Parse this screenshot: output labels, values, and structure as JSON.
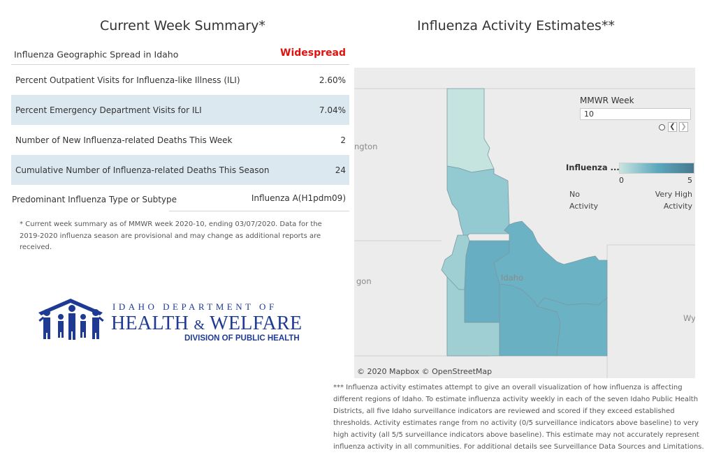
{
  "left_title": "Current Week Summary*",
  "right_title": "Influenza Activity Estimates**",
  "summary": {
    "spread_label": "Influenza Geographic Spread in Idaho",
    "spread_value": "Widespread",
    "spread_color": "#e0120f",
    "ili_label": "Percent Outpatient Visits for Influenza-like Illness (ILI)",
    "ili_value": "2.60%",
    "ed_label": "Percent Emergency Department Visits for ILI",
    "ed_value": "7.04%",
    "deaths_label": "Number of New Influenza-related Deaths This Week",
    "deaths_value": "2",
    "cum_label": "Cumulative Number of Influenza-related Deaths This Season",
    "cum_value": "24",
    "type_label": "Predominant Influenza Type or Subtype",
    "type_value": "Influenza A(H1pdm09)"
  },
  "footnote_left": "* Current week summary as of MMWR week 2020-10, ending 03/07/2020. Data for the 2019-2020 influenza season are provisional and may change as additional reports are received.",
  "logo": {
    "line1": "IDAHO DEPARTMENT OF",
    "line2_a": "HEALTH",
    "line2_amp": "&",
    "line2_b": "WELFARE",
    "line3": "DIVISION OF PUBLIC HEALTH",
    "color": "#1f3a93"
  },
  "map": {
    "week_label": "MMWR Week",
    "week_value": "10",
    "prev_icon": "chevron-left-icon",
    "next_icon": "chevron-right-icon",
    "legend_title": "Influenza ...",
    "legend_min": "0",
    "legend_max": "5",
    "legend_low_label": [
      "No",
      "Activity"
    ],
    "legend_high_label": [
      "Very High",
      "Activity"
    ],
    "legend_colors": [
      "#c8e4e0",
      "#5ea9be",
      "#47788e"
    ],
    "attribution": "© 2020 Mapbox © OpenStreetMap",
    "basemap_labels": {
      "washington": "ngton",
      "oregon": "gon",
      "idaho": "Idaho",
      "wyoming": "Wy"
    },
    "district_colors": {
      "d1": "#c6e4df",
      "d2": "#93c9d0",
      "d3": "#9fcfd3",
      "d4": "#68aec3",
      "d5": "#6ab0c3",
      "d6": "#6cb2c5",
      "d7": "#6cb2c5"
    }
  },
  "footnote_right": "*** Influenza activity estimates attempt to give an overall visualization of how influenza is affecting different regions of Idaho. To estimate influenza activity weekly in each of the seven Idaho Public Health Districts, all five Idaho surveillance indicators are reviewed and scored if they exceed established thresholds. Activity estimates range from no activity (0/5 surveillance indicators above baseline) to very high activity (all 5/5 surveillance indicators above baseline). This estimate may not accurately represent influenza activity in all communities. For additional details see Surveillance Data Sources and Limitations."
}
